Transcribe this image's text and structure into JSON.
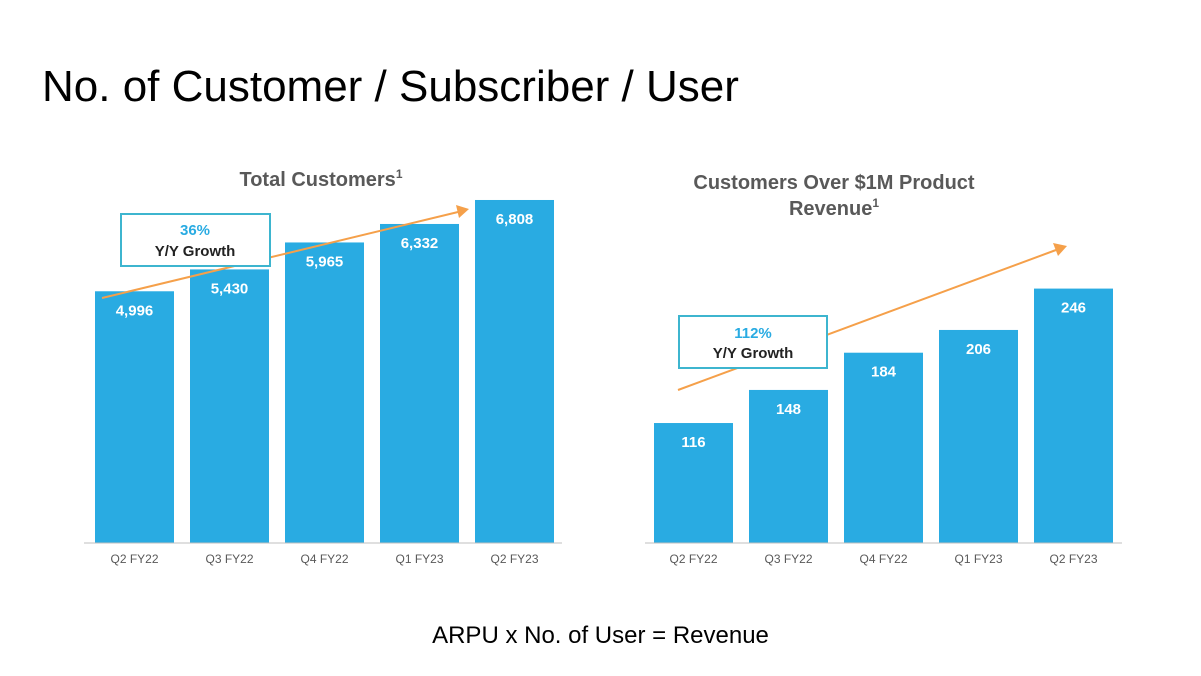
{
  "page": {
    "title": "No. of Customer / Subscriber / User",
    "footer_text": "ARPU x No. of User = Revenue"
  },
  "colors": {
    "bar": "#29ABE2",
    "trend_arrow": "#F5A04A",
    "callout_border": "#3DB5CF"
  },
  "chart_data": [
    {
      "type": "bar",
      "title": "Total Customers",
      "title_superscript": "1",
      "categories": [
        "Q2 FY22",
        "Q3 FY22",
        "Q4 FY22",
        "Q1 FY23",
        "Q2 FY23"
      ],
      "values": [
        4996,
        5430,
        5965,
        6332,
        6808
      ],
      "value_labels": [
        "4,996",
        "5,430",
        "5,965",
        "6,332",
        "6,808"
      ],
      "ylim": [
        0,
        7800
      ],
      "grid": false,
      "annotation": {
        "percent": "36%",
        "text": "Y/Y Growth"
      }
    },
    {
      "type": "bar",
      "title_lines": [
        "Customers Over $1M Product",
        "Revenue"
      ],
      "title_superscript": "1",
      "categories": [
        "Q2 FY22",
        "Q3 FY22",
        "Q4 FY22",
        "Q1 FY23",
        "Q2 FY23"
      ],
      "values": [
        116,
        148,
        184,
        206,
        246
      ],
      "value_labels": [
        "116",
        "148",
        "184",
        "206",
        "246"
      ],
      "ylim": [
        0,
        380
      ],
      "grid": false,
      "annotation": {
        "percent": "112%",
        "text": "Y/Y Growth"
      }
    }
  ]
}
